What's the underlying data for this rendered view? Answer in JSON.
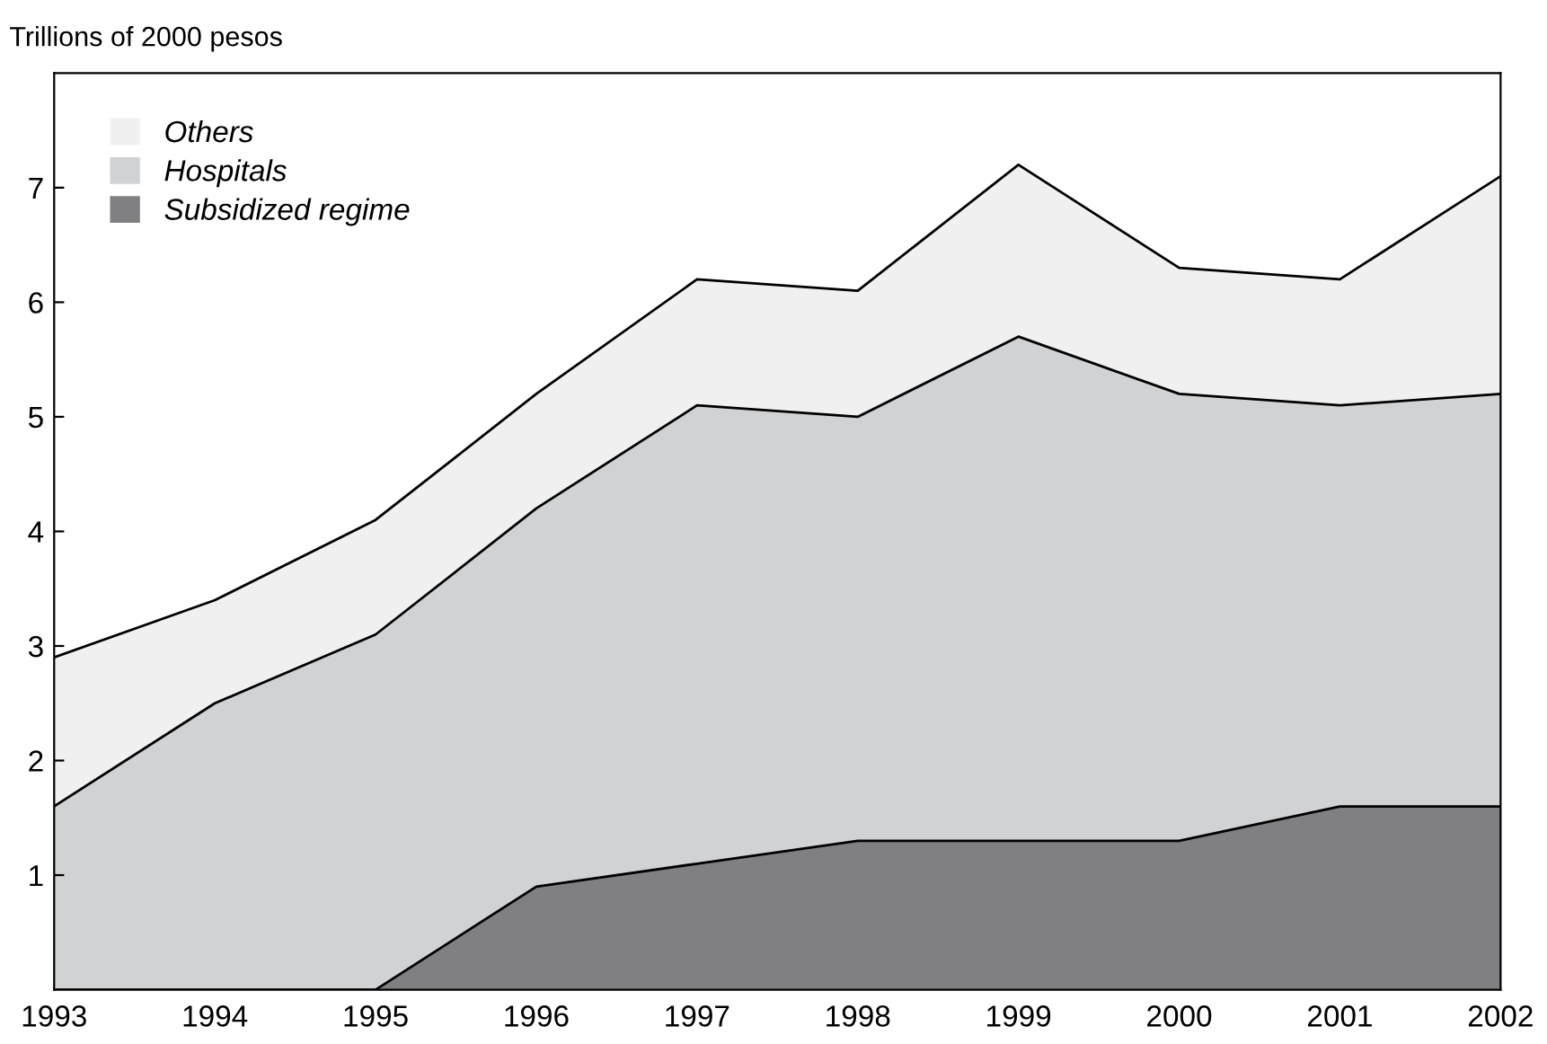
{
  "chart_data": {
    "type": "area",
    "stacked": true,
    "ylabel": "Trillions of 2000 pesos",
    "x": [
      1993,
      1994,
      1995,
      1996,
      1997,
      1998,
      1999,
      2000,
      2001,
      2002
    ],
    "series": [
      {
        "name": "Subsidized regime",
        "color": "#808083",
        "values": [
          0,
          0,
          0,
          0.9,
          1.1,
          1.3,
          1.3,
          1.3,
          1.6,
          1.6
        ]
      },
      {
        "name": "Hospitals",
        "color": "#d1d2d4",
        "values": [
          1.6,
          2.5,
          3.1,
          3.3,
          4.0,
          3.7,
          4.4,
          3.9,
          3.5,
          3.6
        ]
      },
      {
        "name": "Others",
        "color": "#f0f0f1",
        "values": [
          1.3,
          0.9,
          1.0,
          1.0,
          1.1,
          1.1,
          1.5,
          1.1,
          1.1,
          1.9
        ]
      }
    ],
    "xlim": [
      1993,
      2002
    ],
    "xticks": [
      1993,
      1994,
      1995,
      1996,
      1997,
      1998,
      1999,
      2000,
      2001,
      2002
    ],
    "ylim": [
      0,
      8
    ],
    "yticks": [
      1,
      2,
      3,
      4,
      5,
      6,
      7
    ],
    "grid": false,
    "legend": "top left"
  }
}
